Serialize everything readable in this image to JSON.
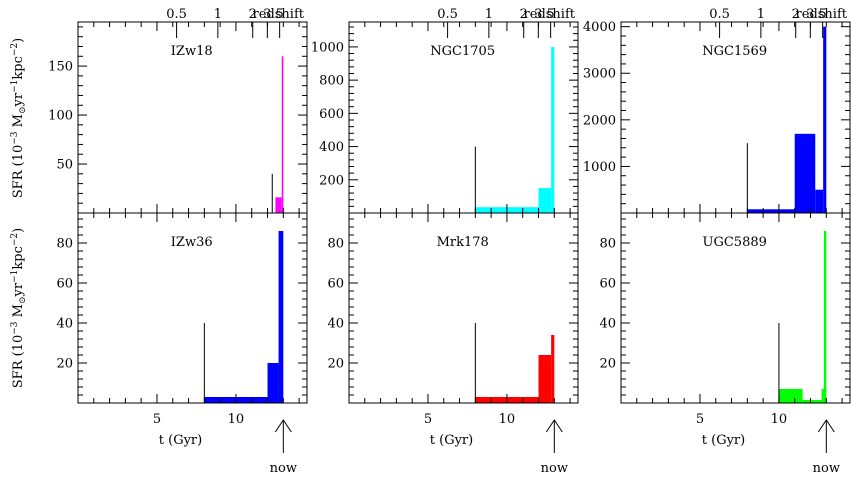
{
  "figure": {
    "ylabel_parts": [
      "SFR (10",
      "−3",
      " M",
      "⊙",
      "yr",
      "−1",
      "kpc",
      "−2",
      ")"
    ],
    "xlabel": "t (Gyr)",
    "now_label": "now",
    "redshift_label": "redshift",
    "redshift_ticks": [
      "5",
      "3",
      "2",
      "1",
      "0.5"
    ],
    "colors": {
      "IZw18": "#ff00ff",
      "NGC1705": "#00ffff",
      "NGC1569": "#0000ff",
      "IZw36": "#0000ff",
      "Mrk178": "#ff0000",
      "UGC5889": "#00ff00"
    }
  },
  "chart_data": [
    {
      "type": "bar",
      "name": "IZw18",
      "color": "#ff00ff",
      "xlim": [
        0,
        14.5
      ],
      "ylim": [
        0,
        195
      ],
      "ytick_labels": [
        "50",
        "100",
        "150"
      ],
      "xtick_labels": [],
      "bars": [
        {
          "x0": 12.5,
          "x1": 12.9,
          "y": 16
        },
        {
          "x0": 12.9,
          "x1": 13.0,
          "y": 160
        }
      ],
      "vlines": [
        {
          "x": 12.3,
          "y": 40
        }
      ]
    },
    {
      "type": "bar",
      "name": "NGC1705",
      "color": "#00ffff",
      "xlim": [
        0,
        14.5
      ],
      "ylim": [
        0,
        1150
      ],
      "ytick_labels": [
        "200",
        "400",
        "600",
        "800",
        "1000"
      ],
      "xtick_labels": [],
      "bars": [
        {
          "x0": 8.0,
          "x1": 12.0,
          "y": 35
        },
        {
          "x0": 12.0,
          "x1": 12.8,
          "y": 150
        },
        {
          "x0": 12.8,
          "x1": 13.0,
          "y": 1000
        }
      ],
      "vlines": [
        {
          "x": 8.0,
          "y": 400
        }
      ]
    },
    {
      "type": "bar",
      "name": "NGC1569",
      "color": "#0000ff",
      "xlim": [
        0,
        14.5
      ],
      "ylim": [
        0,
        4100
      ],
      "ytick_labels": [
        "1000",
        "2000",
        "3000",
        "4000"
      ],
      "xtick_labels": [],
      "bars": [
        {
          "x0": 8.0,
          "x1": 11.0,
          "y": 80
        },
        {
          "x0": 11.0,
          "x1": 12.3,
          "y": 1700
        },
        {
          "x0": 12.3,
          "x1": 12.8,
          "y": 500
        },
        {
          "x0": 12.8,
          "x1": 13.0,
          "y": 4000
        }
      ],
      "vlines": [
        {
          "x": 8.0,
          "y": 1500
        }
      ]
    },
    {
      "type": "bar",
      "name": "IZw36",
      "color": "#0000ff",
      "xlim": [
        0,
        14.5
      ],
      "ylim": [
        0,
        95
      ],
      "ytick_labels": [
        "20",
        "40",
        "60",
        "80"
      ],
      "xtick_labels": [
        "5",
        "10"
      ],
      "bars": [
        {
          "x0": 8.0,
          "x1": 12.0,
          "y": 3
        },
        {
          "x0": 12.0,
          "x1": 12.7,
          "y": 20
        },
        {
          "x0": 12.7,
          "x1": 13.0,
          "y": 86
        }
      ],
      "vlines": [
        {
          "x": 8.0,
          "y": 40
        }
      ]
    },
    {
      "type": "bar",
      "name": "Mrk178",
      "color": "#ff0000",
      "xlim": [
        0,
        14.5
      ],
      "ylim": [
        0,
        95
      ],
      "ytick_labels": [
        "20",
        "40",
        "60",
        "80"
      ],
      "xtick_labels": [
        "5",
        "10"
      ],
      "bars": [
        {
          "x0": 8.0,
          "x1": 12.0,
          "y": 3
        },
        {
          "x0": 12.0,
          "x1": 12.8,
          "y": 24
        },
        {
          "x0": 12.8,
          "x1": 13.0,
          "y": 34
        }
      ],
      "vlines": [
        {
          "x": 8.0,
          "y": 40
        }
      ]
    },
    {
      "type": "bar",
      "name": "UGC5889",
      "color": "#00ff00",
      "xlim": [
        0,
        14.5
      ],
      "ylim": [
        0,
        95
      ],
      "ytick_labels": [
        "20",
        "40",
        "60",
        "80"
      ],
      "xtick_labels": [
        "5",
        "10"
      ],
      "bars": [
        {
          "x0": 10.0,
          "x1": 11.5,
          "y": 7
        },
        {
          "x0": 11.5,
          "x1": 12.7,
          "y": 1.5
        },
        {
          "x0": 12.7,
          "x1": 12.85,
          "y": 7
        },
        {
          "x0": 12.85,
          "x1": 13.0,
          "y": 86
        }
      ],
      "vlines": [
        {
          "x": 10.0,
          "y": 40
        }
      ]
    }
  ]
}
